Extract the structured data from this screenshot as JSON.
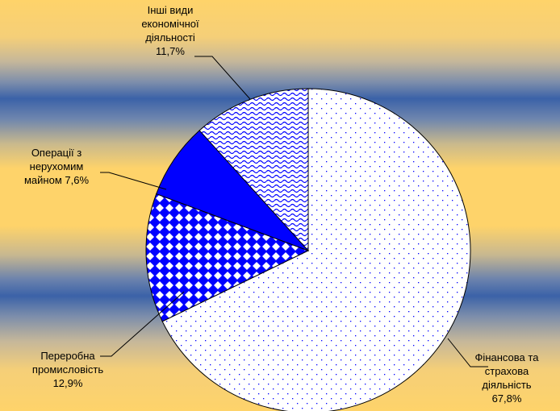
{
  "chart_data": {
    "type": "pie",
    "title": "",
    "start_angle_deg": 0,
    "direction": "clockwise",
    "slices": [
      {
        "label_lines": [
          "Фінансова та",
          "страхова",
          "діяльність",
          "67,8%"
        ],
        "category": "Фінансова та страхова діяльність",
        "value": 67.8,
        "pattern": "dots",
        "color": "#0000ff",
        "background": "#ffffff"
      },
      {
        "label_lines": [
          "Переробна",
          "промисловість",
          "12,9%"
        ],
        "category": "Переробна промисловість",
        "value": 12.9,
        "pattern": "diamonds",
        "color": "#0000ff",
        "background": "#ffffff"
      },
      {
        "label_lines": [
          "Операції з",
          "нерухомим",
          "майном 7,6%"
        ],
        "category": "Операції з нерухомим майном",
        "value": 7.6,
        "pattern": "solid",
        "color": "#0000ff",
        "background": "#0000ff"
      },
      {
        "label_lines": [
          "Інші види",
          "економічної",
          "діяльності",
          "11,7%"
        ],
        "category": "Інші види економічної діяльності",
        "value": 11.7,
        "pattern": "waves",
        "color": "#0000ff",
        "background": "#ffffff"
      }
    ]
  }
}
